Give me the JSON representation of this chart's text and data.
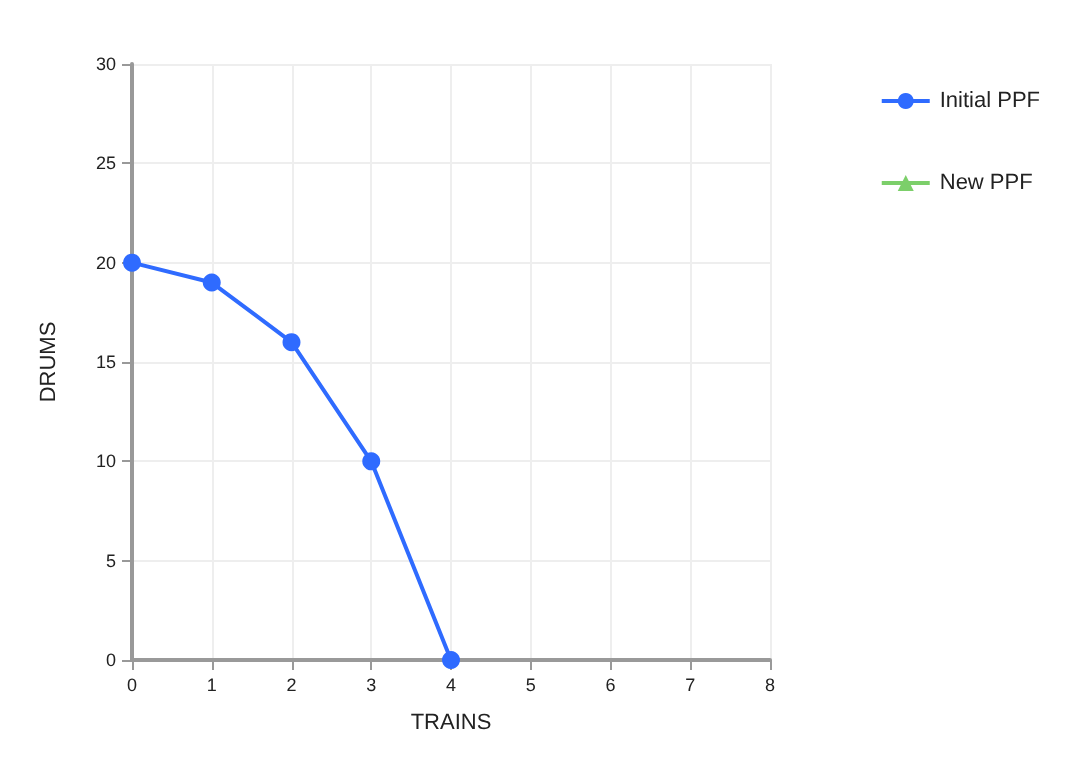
{
  "chart_data": {
    "type": "line",
    "xlabel": "TRAINS",
    "ylabel": "DRUMS",
    "x": [
      0,
      1,
      2,
      3,
      4
    ],
    "series": [
      {
        "name": "Initial PPF",
        "color": "#2f6bff",
        "marker": "circle",
        "values": [
          20,
          19,
          16,
          10,
          0
        ]
      },
      {
        "name": "New PPF",
        "color": "#7ccf6a",
        "marker": "triangle",
        "values": [
          null,
          null,
          null,
          null,
          null
        ]
      }
    ],
    "xlim": [
      0,
      8
    ],
    "xticks": [
      0,
      1,
      2,
      3,
      4,
      5,
      6,
      7,
      8
    ],
    "ylim": [
      0,
      30
    ],
    "yticks": [
      0,
      5,
      10,
      15,
      20,
      25,
      30
    ],
    "grid": true,
    "legend": "right"
  }
}
